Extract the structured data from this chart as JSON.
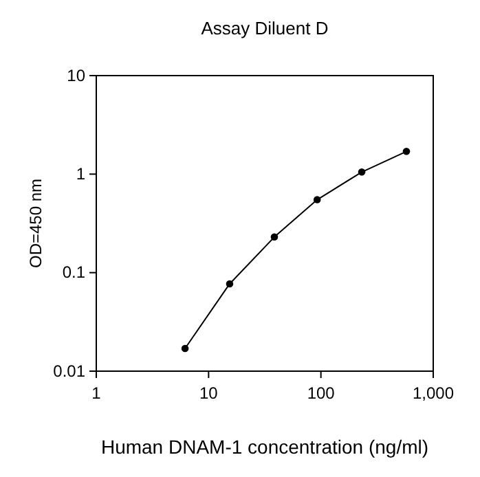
{
  "chart_data": {
    "type": "line",
    "title": "Assay Diluent D",
    "xlabel": "Human DNAM-1 concentration (ng/ml)",
    "ylabel": "OD=450 nm",
    "log": "xy",
    "x": [
      6.17,
      15.4,
      38.5,
      92.6,
      231,
      577
    ],
    "series": [
      {
        "color": "#000000",
        "values": [
          0.017,
          0.077,
          0.23,
          0.55,
          1.05,
          1.7
        ]
      }
    ],
    "xlim": [
      1,
      1000
    ],
    "xticks": [
      1,
      10,
      100,
      {
        "value": 1000,
        "label": "1,000"
      }
    ],
    "ylim": [
      0.01,
      10
    ],
    "yticks": [
      0.01,
      0.1,
      1,
      10
    ],
    "grid": false,
    "marker": "circle",
    "line_style": "solid"
  }
}
